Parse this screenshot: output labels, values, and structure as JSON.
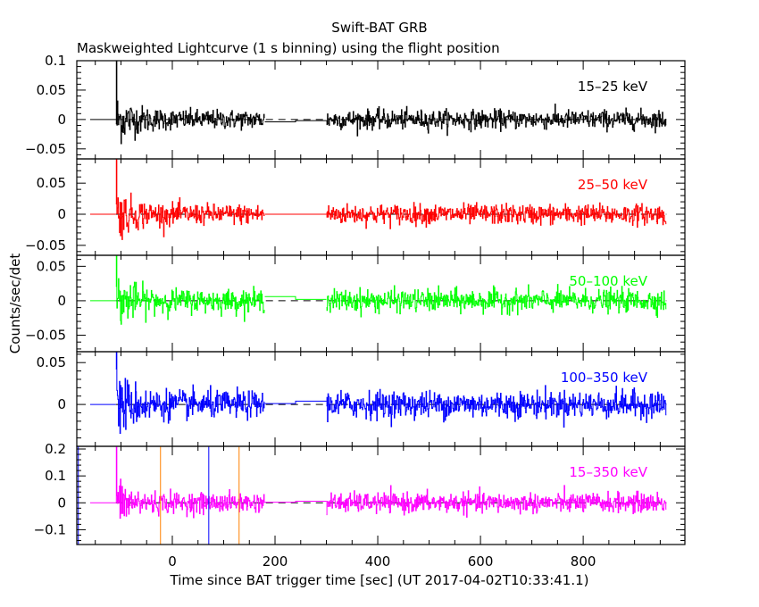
{
  "chart_data": {
    "type": "line",
    "title": "Swift-BAT GRB",
    "subtitle": "Maskweighted Lightcurve (1 s binning) using the flight position",
    "xlabel": "Time since BAT trigger time [sec] (UT 2017-04-02T10:33:41.1)",
    "ylabel": "Counts/sec/det",
    "xlim": [
      -186,
      998
    ],
    "x_ticks": [
      0,
      200,
      400,
      600,
      800
    ],
    "x_tick_labels": [
      "0",
      "200",
      "400",
      "600",
      "800"
    ],
    "binning_sec": 1,
    "segments": {
      "flat_zero": [
        -160,
        -110
      ],
      "data_1": [
        -110,
        180
      ],
      "gap": [
        180,
        300
      ],
      "data_2": [
        300,
        962
      ]
    },
    "vertical_lines": [
      {
        "x": -183,
        "color": "#0000ff"
      },
      {
        "x": -23,
        "color": "#ff8000"
      },
      {
        "x": 71,
        "color": "#0000ff"
      },
      {
        "x": 130,
        "color": "#ff8000"
      }
    ],
    "series": [
      {
        "name": "15-25 keV",
        "color": "#000000",
        "ylim": [
          -0.067,
          0.1
        ],
        "y_ticks": [
          0.1,
          0.05,
          0,
          -0.05
        ],
        "y_tick_labels": [
          "0.1",
          "0.05",
          "0",
          "−0.05"
        ],
        "noise_sigma": 0.008,
        "burst_boost": 3.0,
        "gap_levels": [
          -0.004,
          -0.002
        ],
        "peak": 0.1
      },
      {
        "name": "25-50 keV",
        "color": "#ff0000",
        "ylim": [
          -0.066,
          0.089
        ],
        "y_ticks": [
          0.05,
          0,
          -0.05
        ],
        "y_tick_labels": [
          "0.05",
          "0",
          "−0.05"
        ],
        "noise_sigma": 0.008,
        "burst_boost": 2.8,
        "gap_levels": [
          0,
          0
        ],
        "peak": 0.088
      },
      {
        "name": "50-100 keV",
        "color": "#00ff00",
        "ylim": [
          -0.074,
          0.066
        ],
        "y_ticks": [
          0.05,
          0,
          -0.05
        ],
        "y_tick_labels": [
          "0.05",
          "0",
          "−0.05"
        ],
        "noise_sigma": 0.008,
        "burst_boost": 2.6,
        "gap_levels": [
          0.006,
          0.002
        ],
        "peak": 0.066
      },
      {
        "name": "100-350 keV",
        "color": "#0000ff",
        "ylim": [
          -0.05,
          0.063
        ],
        "y_ticks": [
          0.05,
          0
        ],
        "y_tick_labels": [
          "0.05",
          "0"
        ],
        "noise_sigma": 0.008,
        "burst_boost": 2.8,
        "gap_levels": [
          0.001,
          0.004
        ],
        "peak": 0.062
      },
      {
        "name": "15-350 keV",
        "color": "#ff00ff",
        "ylim": [
          -0.155,
          0.21
        ],
        "y_ticks": [
          0.2,
          0.1,
          0,
          -0.1
        ],
        "y_tick_labels": [
          "0.2",
          "0.1",
          "0",
          "−0.1"
        ],
        "noise_sigma": 0.018,
        "burst_boost": 2.6,
        "gap_levels": [
          0.002,
          0.006
        ],
        "peak": 0.21
      }
    ]
  }
}
